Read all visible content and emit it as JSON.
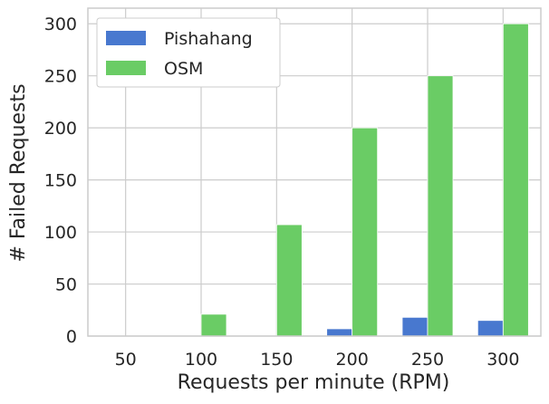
{
  "chart_data": {
    "type": "bar",
    "categories": [
      "50",
      "100",
      "150",
      "200",
      "250",
      "300"
    ],
    "series": [
      {
        "name": "Pishahang",
        "values": [
          0,
          0,
          0,
          7,
          18,
          15
        ],
        "color": "#4878cf"
      },
      {
        "name": "OSM",
        "values": [
          0,
          21,
          107,
          200,
          250,
          300
        ],
        "color": "#6acc65"
      }
    ],
    "xlabel": "Requests per minute (RPM)",
    "ylabel": "# Failed Requests",
    "ylim": [
      0,
      315
    ],
    "yticks": [
      0,
      50,
      100,
      150,
      200,
      250,
      300
    ],
    "grid": true,
    "legend_position": "top-left",
    "colors": {
      "grid": "#cccccc",
      "frame": "#cccccc",
      "text": "#262626"
    }
  }
}
